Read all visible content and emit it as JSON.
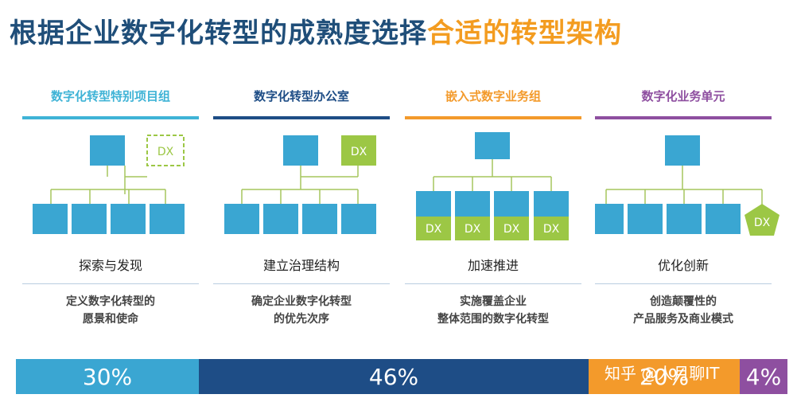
{
  "title": {
    "part1": "根据企业数字化转型的成熟度选择",
    "part2": "合适的转型架构"
  },
  "columns": [
    {
      "header": "数字化转型特别项目组",
      "name": "探索与发现",
      "desc": [
        "定义数字化转型的",
        "愿景和使命"
      ],
      "accent": "#3fb3d6",
      "dx": "DX"
    },
    {
      "header": "数字化转型办公室",
      "name": "建立治理结构",
      "desc": [
        "确定企业数字化转型",
        "的优先次序"
      ],
      "accent": "#1e4d86",
      "dx": "DX"
    },
    {
      "header": "嵌入式数字业务组",
      "name": "加速推进",
      "desc": [
        "实施覆盖企业",
        "整体范围的数字化转型"
      ],
      "accent": "#f39a2b",
      "dx": "DX"
    },
    {
      "header": "数字化业务单元",
      "name": "优化创新",
      "desc": [
        "创造颠覆性的",
        "产品服务及商业模式"
      ],
      "accent": "#8e4fa0",
      "dx": "DX"
    }
  ],
  "colors": {
    "box": "#3aa6d2",
    "dx": "#9cc745",
    "line": "#a6c55d",
    "title_dark": "#1f4e79",
    "title_accent": "#f39c20"
  },
  "bar": [
    {
      "label": "30%",
      "value": 30,
      "color": "#3aa6d2"
    },
    {
      "label": "46%",
      "value": 46,
      "color": "#1e4d86"
    },
    {
      "label": "20%",
      "value": 20,
      "color": "#f39a2b"
    },
    {
      "label": "4%",
      "value": 4,
      "color": "#8e4fa0"
    }
  ],
  "watermark": "知乎 @人月聊IT"
}
